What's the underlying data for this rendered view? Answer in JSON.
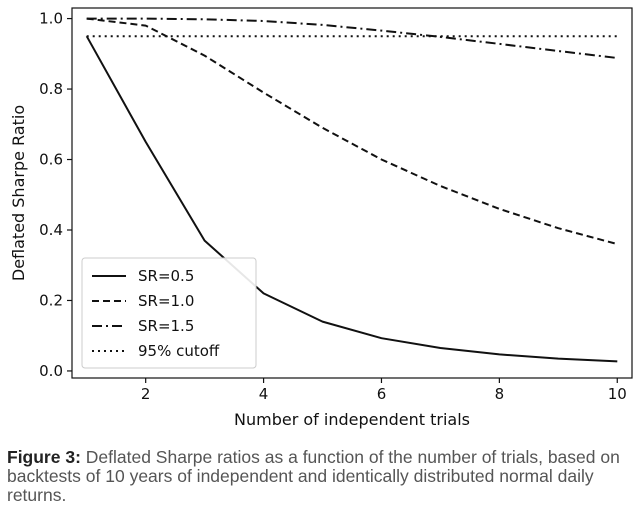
{
  "chart_data": {
    "type": "line",
    "xlabel": "Number of independent trials",
    "ylabel": "Deflated Sharpe Ratio",
    "xlim": [
      0.75,
      10.25
    ],
    "ylim": [
      -0.02,
      1.03
    ],
    "xticks": [
      2,
      4,
      6,
      8,
      10
    ],
    "yticks": [
      0.0,
      0.2,
      0.4,
      0.6,
      0.8,
      1.0
    ],
    "ytick_labels": [
      "0.0",
      "0.2",
      "0.4",
      "0.6",
      "0.8",
      "1.0"
    ],
    "grid": false,
    "legend_position": "lower-left",
    "x": [
      1,
      2,
      3,
      4,
      5,
      6,
      7,
      8,
      9,
      10
    ],
    "series": [
      {
        "name": "SR=0.5",
        "style": "solid",
        "values": [
          0.95,
          0.65,
          0.37,
          0.22,
          0.14,
          0.093,
          0.065,
          0.047,
          0.035,
          0.027
        ]
      },
      {
        "name": "SR=1.0",
        "style": "dashed",
        "values": [
          1.0,
          0.98,
          0.895,
          0.79,
          0.69,
          0.6,
          0.525,
          0.46,
          0.405,
          0.36
        ]
      },
      {
        "name": "SR=1.5",
        "style": "dashdot",
        "values": [
          1.0,
          1.0,
          0.998,
          0.993,
          0.982,
          0.966,
          0.948,
          0.928,
          0.908,
          0.888
        ]
      },
      {
        "name": "95% cutoff",
        "style": "dotted",
        "values": [
          0.95,
          0.95,
          0.95,
          0.95,
          0.95,
          0.95,
          0.95,
          0.95,
          0.95,
          0.95
        ]
      }
    ]
  },
  "caption": {
    "label": "Figure 3:",
    "text": " Deflated Sharpe ratios as a function of the number of trials, based on backtests of 10 years of independent and identically distributed normal daily returns."
  },
  "colors": {
    "line": "#111111",
    "caption_text": "#555555",
    "caption_label": "#222222"
  }
}
